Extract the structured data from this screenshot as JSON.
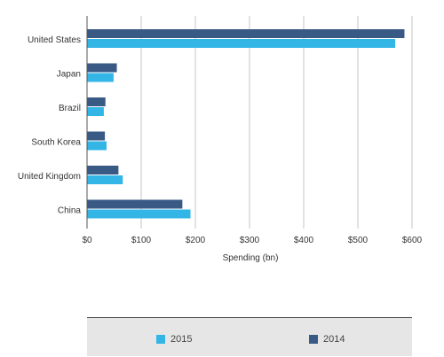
{
  "colors": {
    "series_2015": "#33b5e5",
    "series_2014": "#3a5a86",
    "grid": "#c4c4c4",
    "axis": "#555555",
    "text": "#333333"
  },
  "chart_data": {
    "type": "bar",
    "orientation": "horizontal",
    "categories": [
      "United States",
      "Japan",
      "Brazil",
      "South Korea",
      "United Kingdom",
      "China"
    ],
    "series": [
      {
        "name": "2014",
        "values": [
          586,
          55,
          34,
          33,
          58,
          176
        ]
      },
      {
        "name": "2015",
        "values": [
          569,
          49,
          31,
          36,
          66,
          191
        ]
      }
    ],
    "xlabel": "Spending (bn)",
    "xlim": [
      0,
      600
    ],
    "xticks": [
      0,
      100,
      200,
      300,
      400,
      500,
      600
    ],
    "xtick_labels": [
      "$0",
      "$100",
      "$200",
      "$300",
      "$400",
      "$500",
      "$600"
    ],
    "grid": true,
    "legend": {
      "position": "bottom",
      "entries": [
        "2015",
        "2014"
      ]
    }
  }
}
